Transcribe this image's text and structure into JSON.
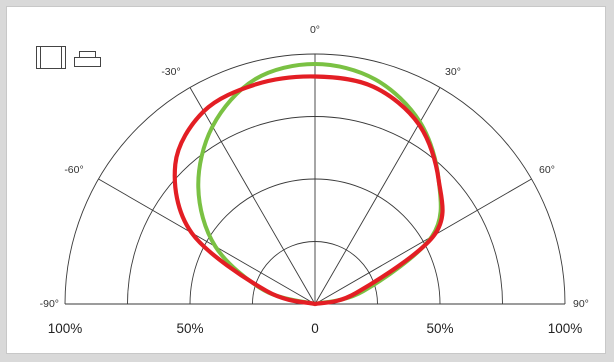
{
  "chart_data": {
    "type": "polar",
    "title": "",
    "angle_labels": [
      "-90°",
      "-60°",
      "-30°",
      "0°",
      "30°",
      "60°",
      "90°"
    ],
    "radial_labels": [
      "100%",
      "50%",
      "0",
      "50%",
      "100%"
    ],
    "rings": [
      0.25,
      0.5,
      0.75,
      1.0
    ],
    "series": [
      {
        "color": "#7ac143",
        "angles": [
          -90,
          -75,
          -60,
          -45,
          -30,
          -15,
          0,
          15,
          30,
          45,
          60,
          75,
          90
        ],
        "values": [
          0.0,
          0.21,
          0.46,
          0.66,
          0.82,
          0.93,
          0.96,
          0.93,
          0.84,
          0.7,
          0.54,
          0.2,
          0.0
        ]
      },
      {
        "color": "#e31e24",
        "angles": [
          -90,
          -75,
          -60,
          -45,
          -30,
          -15,
          0,
          15,
          30,
          45,
          60,
          75,
          90
        ],
        "values": [
          0.0,
          0.2,
          0.57,
          0.79,
          0.89,
          0.91,
          0.91,
          0.9,
          0.83,
          0.7,
          0.55,
          0.17,
          0.0
        ]
      }
    ]
  },
  "icons": [
    "single-panel-icon",
    "luminaire-icon"
  ]
}
